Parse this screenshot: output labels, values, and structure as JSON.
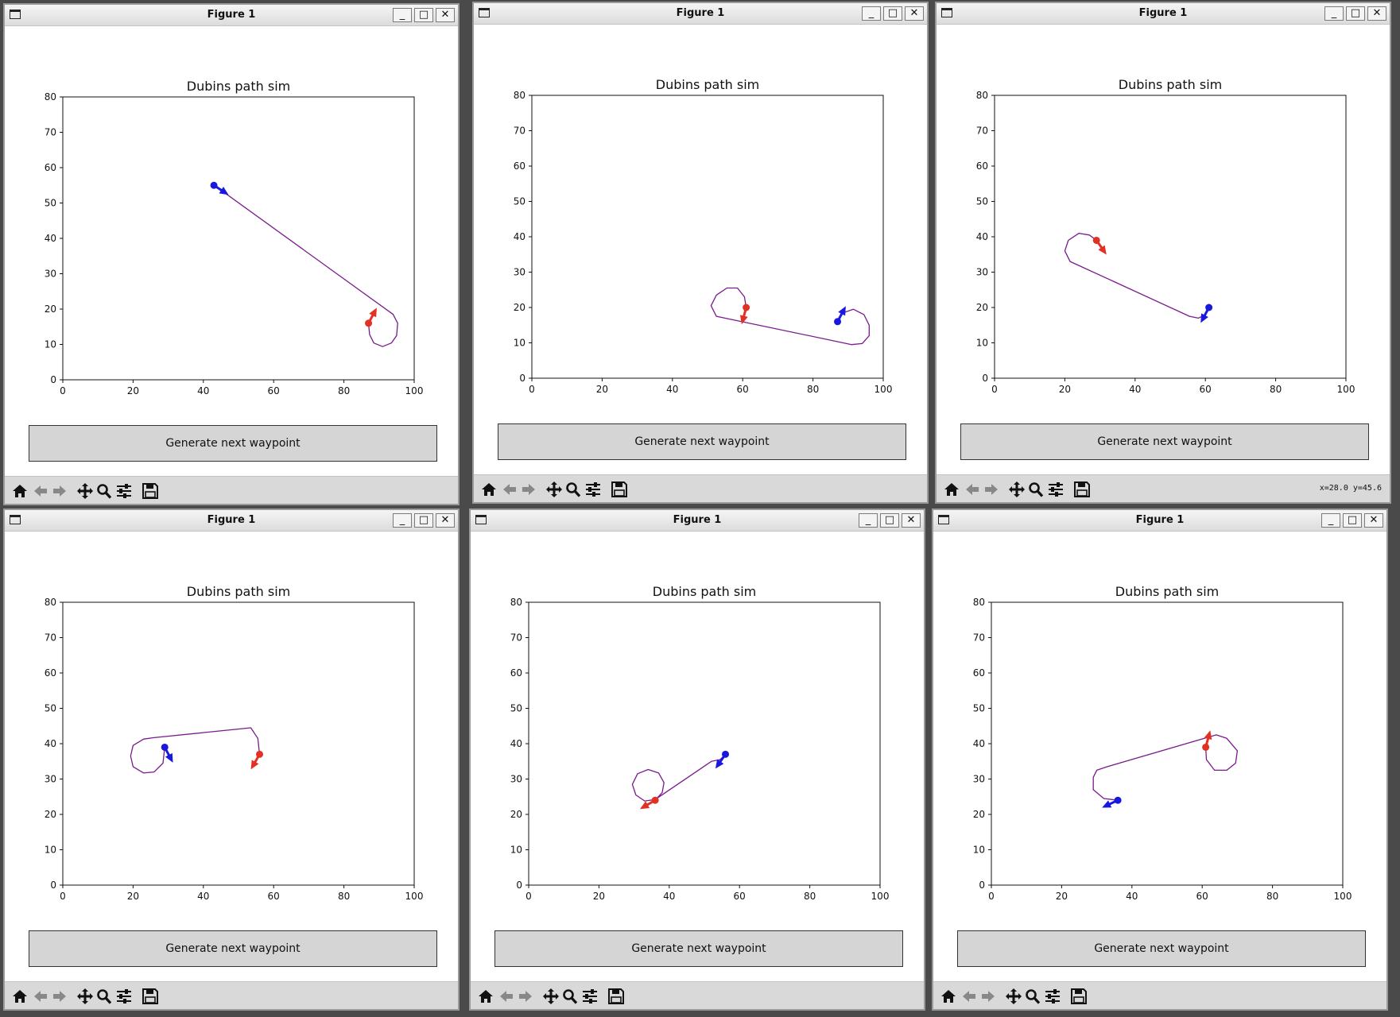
{
  "window": {
    "title": "Figure 1",
    "minimize_label": "_",
    "maximize_label": "□",
    "close_label": "✕",
    "button_label": "Generate next waypoint",
    "toolbar_icons": [
      "home-icon",
      "back-arrow-icon",
      "forward-arrow-icon",
      "pan-icon",
      "zoom-icon",
      "configure-icon",
      "save-icon"
    ]
  },
  "colors": {
    "start": "#1818e0",
    "goal": "#e23024",
    "path": "#7a1a8c"
  },
  "chart_data": [
    {
      "type": "line",
      "title": "Dubins path sim",
      "xlim": [
        0,
        100
      ],
      "ylim": [
        0,
        80
      ],
      "xticks": [
        0,
        20,
        40,
        60,
        80,
        100
      ],
      "yticks": [
        0,
        10,
        20,
        30,
        40,
        50,
        60,
        70,
        80
      ],
      "start": {
        "x": 43,
        "y": 55,
        "heading": -33
      },
      "goal": {
        "x": 87,
        "y": 16,
        "heading": 62
      },
      "path": [
        [
          43,
          55
        ],
        [
          44.5,
          54
        ],
        [
          94,
          18.5
        ],
        [
          95.3,
          16
        ],
        [
          95,
          12.5
        ],
        [
          93.5,
          10.4
        ],
        [
          91,
          9.4
        ],
        [
          88.5,
          10.4
        ],
        [
          87.3,
          12.8
        ],
        [
          87,
          16
        ]
      ],
      "coord_readout": ""
    },
    {
      "type": "line",
      "title": "Dubins path sim",
      "xlim": [
        0,
        100
      ],
      "ylim": [
        0,
        80
      ],
      "xticks": [
        0,
        20,
        40,
        60,
        80,
        100
      ],
      "yticks": [
        0,
        10,
        20,
        30,
        40,
        50,
        60,
        70,
        80
      ],
      "start": {
        "x": 87,
        "y": 16,
        "heading": 62
      },
      "goal": {
        "x": 61,
        "y": 20,
        "heading": -105
      },
      "path": [
        [
          87,
          16
        ],
        [
          88.5,
          18.5
        ],
        [
          91.5,
          19.5
        ],
        [
          94.5,
          18
        ],
        [
          96,
          15
        ],
        [
          96,
          12
        ],
        [
          94,
          9.8
        ],
        [
          91,
          9.5
        ],
        [
          52.5,
          17.5
        ],
        [
          51,
          20.5
        ],
        [
          52.5,
          23.5
        ],
        [
          55.5,
          25.5
        ],
        [
          58.5,
          25.5
        ],
        [
          60.5,
          23
        ],
        [
          61,
          20
        ]
      ],
      "coord_readout": ""
    },
    {
      "type": "line",
      "title": "Dubins path sim",
      "xlim": [
        0,
        100
      ],
      "ylim": [
        0,
        80
      ],
      "xticks": [
        0,
        20,
        40,
        60,
        80,
        100
      ],
      "yticks": [
        0,
        10,
        20,
        30,
        40,
        50,
        60,
        70,
        80
      ],
      "start": {
        "x": 61,
        "y": 20,
        "heading": -118
      },
      "goal": {
        "x": 29,
        "y": 39,
        "heading": -55
      },
      "path": [
        [
          61,
          20
        ],
        [
          60,
          18
        ],
        [
          58,
          17
        ],
        [
          55.5,
          17.5
        ],
        [
          21.5,
          33
        ],
        [
          20,
          36
        ],
        [
          21,
          39
        ],
        [
          24,
          41
        ],
        [
          27,
          40.5
        ],
        [
          29,
          39
        ]
      ],
      "coord_readout": "x=28.0 y=45.6"
    },
    {
      "type": "line",
      "title": "Dubins path sim",
      "xlim": [
        0,
        100
      ],
      "ylim": [
        0,
        80
      ],
      "xticks": [
        0,
        20,
        40,
        60,
        80,
        100
      ],
      "yticks": [
        0,
        10,
        20,
        30,
        40,
        50,
        60,
        70,
        80
      ],
      "start": {
        "x": 29,
        "y": 39,
        "heading": -62
      },
      "goal": {
        "x": 56,
        "y": 37,
        "heading": -120
      },
      "path": [
        [
          56,
          37
        ],
        [
          55.5,
          41.5
        ],
        [
          53.5,
          44.5
        ],
        [
          26,
          41.7
        ],
        [
          23,
          41.3
        ],
        [
          20,
          39.5
        ],
        [
          19.3,
          36.5
        ],
        [
          20,
          33.5
        ],
        [
          23,
          31.7
        ],
        [
          26,
          32
        ],
        [
          28.5,
          34.5
        ],
        [
          29,
          39
        ]
      ],
      "coord_readout": ""
    },
    {
      "type": "line",
      "title": "Dubins path sim",
      "xlim": [
        0,
        100
      ],
      "ylim": [
        0,
        80
      ],
      "xticks": [
        0,
        20,
        40,
        60,
        80,
        100
      ],
      "yticks": [
        0,
        10,
        20,
        30,
        40,
        50,
        60,
        70,
        80
      ],
      "start": {
        "x": 56,
        "y": 37,
        "heading": -125
      },
      "goal": {
        "x": 36,
        "y": 24,
        "heading": -150
      },
      "path": [
        [
          56,
          37
        ],
        [
          54.5,
          35.5
        ],
        [
          52,
          35
        ],
        [
          36,
          24.2
        ],
        [
          33,
          23.8
        ],
        [
          30.5,
          25.5
        ],
        [
          29.5,
          28.5
        ],
        [
          31,
          31.5
        ],
        [
          34,
          32.7
        ],
        [
          37,
          31.7
        ],
        [
          38.5,
          29
        ],
        [
          38,
          26.2
        ],
        [
          36,
          24
        ]
      ],
      "coord_readout": ""
    },
    {
      "type": "line",
      "title": "Dubins path sim",
      "xlim": [
        0,
        100
      ],
      "ylim": [
        0,
        80
      ],
      "xticks": [
        0,
        20,
        40,
        60,
        80,
        100
      ],
      "yticks": [
        0,
        10,
        20,
        30,
        40,
        50,
        60,
        70,
        80
      ],
      "start": {
        "x": 36,
        "y": 24,
        "heading": -155
      },
      "goal": {
        "x": 61,
        "y": 39,
        "heading": 75
      },
      "path": [
        [
          36,
          24
        ],
        [
          32,
          24.5
        ],
        [
          29,
          27
        ],
        [
          29,
          30.5
        ],
        [
          30,
          32.5
        ],
        [
          33,
          33.5
        ],
        [
          64,
          42.5
        ],
        [
          67,
          41.5
        ],
        [
          70,
          38
        ],
        [
          69.5,
          34.5
        ],
        [
          67,
          32.5
        ],
        [
          63.5,
          32.5
        ],
        [
          61.2,
          35.5
        ],
        [
          61,
          39
        ]
      ],
      "coord_readout": ""
    }
  ]
}
